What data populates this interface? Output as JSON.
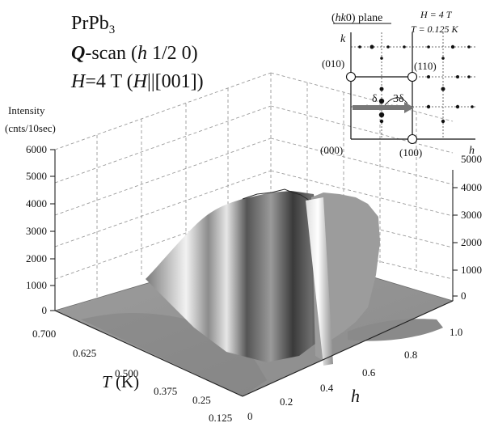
{
  "title": {
    "line1": "PrPb",
    "line1_sub": "3",
    "line2_bold": "Q",
    "line2_rest": "-scan (",
    "line2_h": "h",
    "line2_tail": " 1/2 0)",
    "line3_H": "H",
    "line3_mid": "=4 T (",
    "line3_H2": "H",
    "line3_tail": "||[001])"
  },
  "chart_data": {
    "type": "area",
    "subtype": "3d-surface",
    "zlabel_line1": "Intensity",
    "zlabel_line2": "(cnts/10sec)",
    "xlabel_T": "T",
    "xlabel_T_unit": " (K)",
    "ylabel_h": "h",
    "z_ticks_left": [
      "0",
      "1000",
      "2000",
      "3000",
      "4000",
      "5000",
      "6000"
    ],
    "z_ticks_right": [
      "0",
      "1000",
      "2000",
      "3000",
      "4000",
      "5000"
    ],
    "T_ticks": [
      "0.700",
      "0.625",
      "0.500",
      "0.375",
      "0.25",
      "0.125"
    ],
    "h_ticks": [
      "0",
      "0.2",
      "0.4",
      "0.6",
      "0.8",
      "1.0"
    ],
    "T_values": [
      0.7,
      0.625,
      0.5,
      0.375,
      0.25,
      0.125
    ],
    "h_values": [
      0,
      0.2,
      0.4,
      0.6,
      0.8,
      1.0
    ],
    "zlim": [
      0,
      6000
    ],
    "grid": true
  },
  "inset": {
    "plane_prefix": "(",
    "plane_italic": "hk",
    "plane_suffix": "0) plane",
    "field": "H = 4 T",
    "temperature": "T = 0.125 K",
    "k_label": "k",
    "h_label": "h",
    "p010": "(010)",
    "p110": "(110)",
    "p000": "(000)",
    "p100": "(100)",
    "delta": "δ",
    "three_delta": "3δ"
  }
}
